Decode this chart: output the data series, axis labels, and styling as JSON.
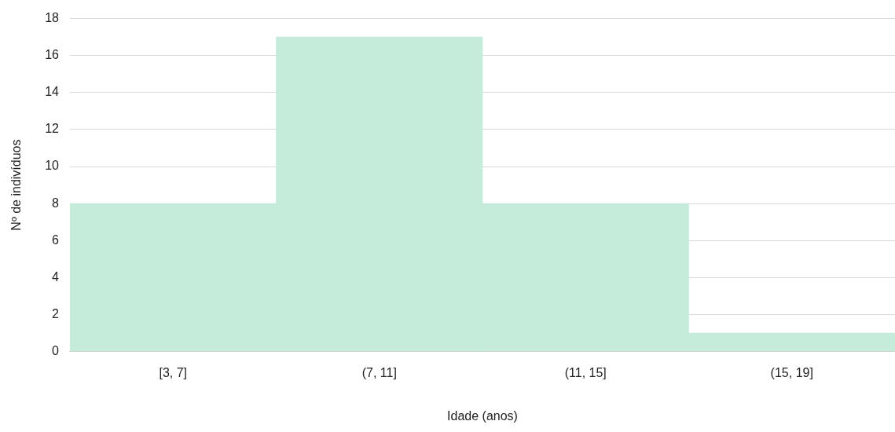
{
  "chart_data": {
    "type": "bar",
    "xlabel": "Idade (anos)",
    "ylabel": "Nº de indivíduos",
    "categories": [
      "[3, 7]",
      "(7, 11]",
      "(11, 15]",
      "(15, 19]"
    ],
    "values": [
      8,
      17,
      8,
      1
    ],
    "color": "#c5ecda",
    "ylim": [
      0,
      18
    ],
    "yticks": [
      0,
      2,
      4,
      6,
      8,
      10,
      12,
      14,
      16,
      18
    ],
    "grid": "y"
  }
}
